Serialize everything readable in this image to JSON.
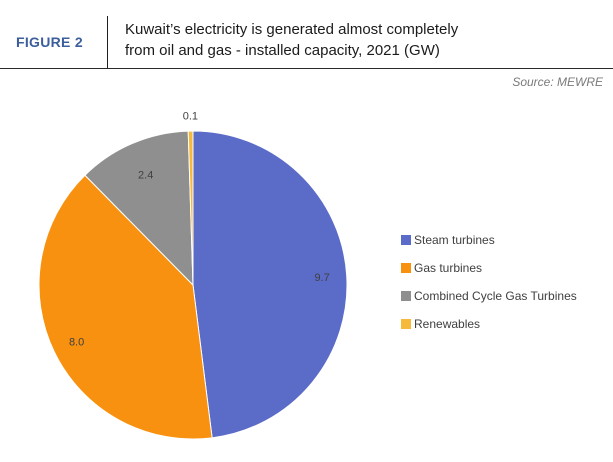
{
  "figure": {
    "label": "FIGURE 2",
    "title_line1": "Kuwait’s electricity is generated almost completely",
    "title_line2": "from oil and gas - installed capacity, 2021 (GW)",
    "source": "Source: MEWRE"
  },
  "chart_data": {
    "type": "pie",
    "title": "Kuwait’s electricity is generated almost completely from oil and gas - installed capacity, 2021 (GW)",
    "unit": "GW",
    "legend_position": "right",
    "slices": [
      {
        "label": "Steam turbines",
        "value": 9.7,
        "value_label": "9.7",
        "color": "#5b6bc8"
      },
      {
        "label": "Gas turbines",
        "value": 8.0,
        "value_label": "8.0",
        "color": "#f7910f"
      },
      {
        "label": "Combined Cycle Gas Turbines",
        "value": 2.4,
        "value_label": "2.4",
        "color": "#8f8f8f"
      },
      {
        "label": "Renewables",
        "value": 0.1,
        "value_label": "0.1",
        "color": "#f6b93b"
      }
    ]
  }
}
